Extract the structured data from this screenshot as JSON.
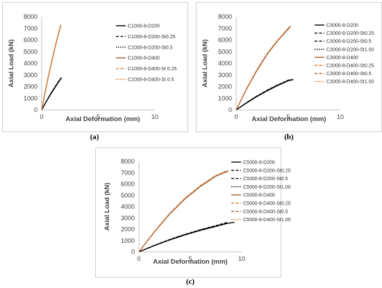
{
  "chart_data": [
    {
      "id": "a",
      "type": "line",
      "panel_label": "(a)",
      "xlabel": "Axial Deformation (mm)",
      "ylabel": "Axial Load (kN)",
      "xlim": [
        0,
        10
      ],
      "ylim": [
        0,
        8000
      ],
      "xticks": [
        0,
        5,
        10
      ],
      "yticks": [
        0,
        1000,
        2000,
        3000,
        4000,
        5000,
        6000,
        7000,
        8000
      ],
      "grid": false,
      "legend_position": "right",
      "series": [
        {
          "name": "C1000-8-D200",
          "color": "#000000",
          "dash": "solid",
          "x": [
            0,
            0.4,
            0.8,
            1.2,
            1.5,
            1.75
          ],
          "y": [
            0,
            700,
            1350,
            1950,
            2400,
            2750
          ]
        },
        {
          "name": "C1000-8-D200-St0.25",
          "color": "#000000",
          "dash": "dashed",
          "x": [
            0,
            0.4,
            0.8,
            1.2,
            1.5,
            1.7
          ],
          "y": [
            0,
            720,
            1400,
            2000,
            2450,
            2700
          ]
        },
        {
          "name": "C1000-8-D200-St0.5",
          "color": "#000000",
          "dash": "dotted",
          "x": [
            0,
            0.4,
            0.8,
            1.2,
            1.5,
            1.75
          ],
          "y": [
            0,
            730,
            1420,
            2050,
            2500,
            2800
          ]
        },
        {
          "name": "C1000-8-D400",
          "color": "#9e5e33",
          "dash": "solid",
          "x": [
            0,
            0.3,
            0.6,
            0.9,
            1.2,
            1.5,
            1.7
          ],
          "y": [
            0,
            1500,
            2900,
            4200,
            5450,
            6600,
            7300
          ]
        },
        {
          "name": "C1000-8-D400-St 0.25",
          "color": "#e07a2e",
          "dash": "dashed",
          "x": [
            0,
            0.3,
            0.6,
            0.9,
            1.2,
            1.5,
            1.65
          ],
          "y": [
            0,
            1520,
            2950,
            4250,
            5500,
            6650,
            7200
          ]
        },
        {
          "name": "C1000-8-D400-St 0.5",
          "color": "#e07a2e",
          "dash": "dotted",
          "x": [
            0,
            0.3,
            0.6,
            0.9,
            1.2,
            1.5,
            1.7
          ],
          "y": [
            0,
            1510,
            2930,
            4230,
            5480,
            6620,
            7250
          ]
        }
      ]
    },
    {
      "id": "b",
      "type": "line",
      "panel_label": "(b)",
      "xlabel": "Axial Deformation (mm)",
      "ylabel": "Axial Load (kN)",
      "xlim": [
        0,
        10
      ],
      "ylim": [
        0,
        8000
      ],
      "xticks": [
        0,
        5,
        10
      ],
      "yticks": [
        0,
        1000,
        2000,
        3000,
        4000,
        5000,
        6000,
        7000,
        8000
      ],
      "grid": false,
      "legend_position": "right",
      "series": [
        {
          "name": "C3000-8-D200",
          "color": "#000000",
          "dash": "solid",
          "x": [
            0,
            1,
            2,
            3,
            4,
            5,
            5.5
          ],
          "y": [
            0,
            600,
            1150,
            1650,
            2100,
            2500,
            2600
          ]
        },
        {
          "name": "C3000-8-D200-St0.25",
          "color": "#000000",
          "dash": "dashed",
          "x": [
            0,
            1,
            2,
            3,
            4,
            5,
            5.3
          ],
          "y": [
            0,
            620,
            1200,
            1700,
            2150,
            2550,
            2600
          ]
        },
        {
          "name": "C3000-8-D200-St0.5",
          "color": "#000000",
          "dash": "dashed",
          "x": [
            0,
            1,
            2,
            3,
            4,
            5,
            5.4
          ],
          "y": [
            0,
            610,
            1180,
            1680,
            2130,
            2530,
            2620
          ]
        },
        {
          "name": "C3000-8-D200-St1.00",
          "color": "#000000",
          "dash": "dotted",
          "x": [
            0,
            1,
            2,
            3,
            4,
            5,
            5.4
          ],
          "y": [
            0,
            630,
            1210,
            1720,
            2170,
            2570,
            2640
          ]
        },
        {
          "name": "C3000-8-D400",
          "color": "#9e5e33",
          "dash": "solid",
          "x": [
            0,
            1,
            2,
            3,
            4,
            5,
            5.2
          ],
          "y": [
            0,
            1800,
            3400,
            4800,
            5950,
            6950,
            7150
          ]
        },
        {
          "name": "C3000-8-D400-St0.25",
          "color": "#e07a2e",
          "dash": "dashed",
          "x": [
            0,
            1,
            2,
            3,
            4,
            5,
            5.2
          ],
          "y": [
            0,
            1830,
            3450,
            4850,
            6000,
            7000,
            7200
          ]
        },
        {
          "name": "C3000-8-D400-St0.5",
          "color": "#9e5e33",
          "dash": "dashed",
          "x": [
            0,
            1,
            2,
            3,
            4,
            5,
            5.2
          ],
          "y": [
            0,
            1810,
            3420,
            4820,
            5970,
            6970,
            7180
          ]
        },
        {
          "name": "C3000-8-D400-St1.00",
          "color": "#e07a2e",
          "dash": "dotted",
          "x": [
            0,
            1,
            2,
            3,
            4,
            5,
            5.2
          ],
          "y": [
            0,
            1840,
            3470,
            4870,
            6020,
            7020,
            7220
          ]
        }
      ]
    },
    {
      "id": "c",
      "type": "line",
      "panel_label": "(c)",
      "xlabel": "Axial Deformation (mm)",
      "ylabel": "Axial Load (kN)",
      "xlim": [
        0,
        10
      ],
      "ylim": [
        0,
        8000
      ],
      "xticks": [
        0,
        5,
        10
      ],
      "yticks": [
        0,
        1000,
        2000,
        3000,
        4000,
        5000,
        6000,
        7000,
        8000
      ],
      "grid": false,
      "legend_position": "right",
      "series": [
        {
          "name": "C5000-8-D200",
          "color": "#000000",
          "dash": "solid",
          "x": [
            0,
            1.5,
            3,
            4.5,
            6,
            7.5,
            8.5,
            9.3
          ],
          "y": [
            0,
            550,
            1050,
            1500,
            1900,
            2250,
            2500,
            2620
          ]
        },
        {
          "name": "C5000-8-D200-St0.25",
          "color": "#000000",
          "dash": "dashed",
          "x": [
            0,
            1.5,
            3,
            4.5,
            6,
            7.5,
            8.5
          ],
          "y": [
            0,
            570,
            1090,
            1550,
            1960,
            2320,
            2580
          ]
        },
        {
          "name": "C5000-8-D200-St0.5",
          "color": "#000000",
          "dash": "dashed",
          "x": [
            0,
            1.5,
            3,
            4.5,
            6,
            7.5,
            8.6
          ],
          "y": [
            0,
            565,
            1080,
            1540,
            1950,
            2310,
            2590
          ]
        },
        {
          "name": "C5000-8-D200-St1.00",
          "color": "#000000",
          "dash": "dotted",
          "x": [
            0,
            1.5,
            3,
            4.5,
            6,
            7.5,
            8.6
          ],
          "y": [
            0,
            575,
            1100,
            1560,
            1970,
            2330,
            2600
          ]
        },
        {
          "name": "C5000-8-D400",
          "color": "#9e5e33",
          "dash": "solid",
          "x": [
            0,
            1.5,
            3,
            4.5,
            6,
            7.5,
            8.7
          ],
          "y": [
            0,
            1750,
            3350,
            4700,
            5800,
            6700,
            7150
          ]
        },
        {
          "name": "C5000-8-D400-St0.25",
          "color": "#e07a2e",
          "dash": "dashed",
          "x": [
            0,
            1.5,
            3,
            4.5,
            6,
            7.5,
            8.6
          ],
          "y": [
            0,
            1780,
            3400,
            4760,
            5860,
            6760,
            7180
          ]
        },
        {
          "name": "C5000-8-D400-St0.5",
          "color": "#9e5e33",
          "dash": "dashed",
          "x": [
            0,
            1.5,
            3,
            4.5,
            6,
            7.5,
            8.6
          ],
          "y": [
            0,
            1770,
            3380,
            4740,
            5840,
            6740,
            7170
          ]
        },
        {
          "name": "C5000-8-D400-St1.00",
          "color": "#e07a2e",
          "dash": "dotted",
          "x": [
            0,
            1.5,
            3,
            4.5,
            6,
            7.5,
            8.7
          ],
          "y": [
            0,
            1790,
            3410,
            4770,
            5870,
            6770,
            7200
          ]
        }
      ]
    }
  ]
}
